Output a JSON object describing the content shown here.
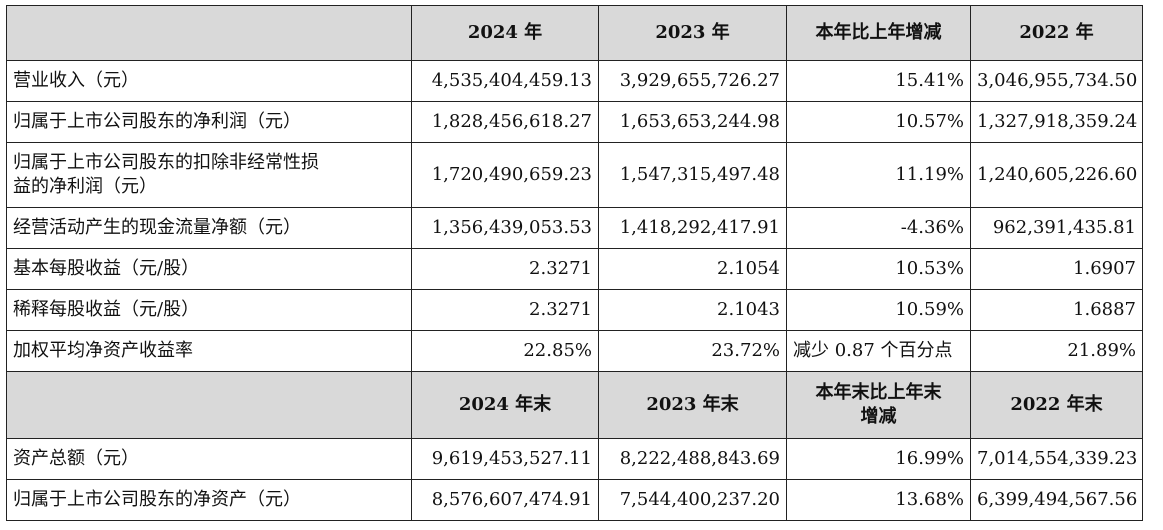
{
  "section1": {
    "headers": [
      "2024 年",
      "2023 年",
      "本年比上年增减",
      "2022 年"
    ],
    "rows": [
      {
        "label": "营业收入（元）",
        "v2024": "4,535,404,459.13",
        "v2023": "3,929,655,726.27",
        "change": "15.41%",
        "v2022": "3,046,955,734.50"
      },
      {
        "label": "归属于上市公司股东的净利润（元）",
        "v2024": "1,828,456,618.27",
        "v2023": "1,653,653,244.98",
        "change": "10.57%",
        "v2022": "1,327,918,359.24"
      },
      {
        "label_line1": "归属于上市公司股东的扣除非经常性损",
        "label_line2": "益的净利润（元）",
        "v2024": "1,720,490,659.23",
        "v2023": "1,547,315,497.48",
        "change": "11.19%",
        "v2022": "1,240,605,226.60"
      },
      {
        "label": "经营活动产生的现金流量净额（元）",
        "v2024": "1,356,439,053.53",
        "v2023": "1,418,292,417.91",
        "change": "-4.36%",
        "v2022": "962,391,435.81"
      },
      {
        "label": "基本每股收益（元/股）",
        "v2024": "2.3271",
        "v2023": "2.1054",
        "change": "10.53%",
        "v2022": "1.6907"
      },
      {
        "label": "稀释每股收益（元/股）",
        "v2024": "2.3271",
        "v2023": "2.1043",
        "change": "10.59%",
        "v2022": "1.6887"
      },
      {
        "label": "加权平均净资产收益率",
        "v2024": "22.85%",
        "v2023": "23.72%",
        "change": "减少 0.87 个百分点",
        "v2022": "21.89%"
      }
    ]
  },
  "section2": {
    "headers": [
      "2024 年末",
      "2023 年末",
      "本年末比上年末",
      "增减",
      "2022 年末"
    ],
    "rows": [
      {
        "label": "资产总额（元）",
        "v2024": "9,619,453,527.11",
        "v2023": "8,222,488,843.69",
        "change": "16.99%",
        "v2022": "7,014,554,339.23"
      },
      {
        "label": "归属于上市公司股东的净资产（元）",
        "v2024": "8,576,607,474.91",
        "v2023": "7,544,400,237.20",
        "change": "13.68%",
        "v2022": "6,399,494,567.56"
      }
    ]
  }
}
